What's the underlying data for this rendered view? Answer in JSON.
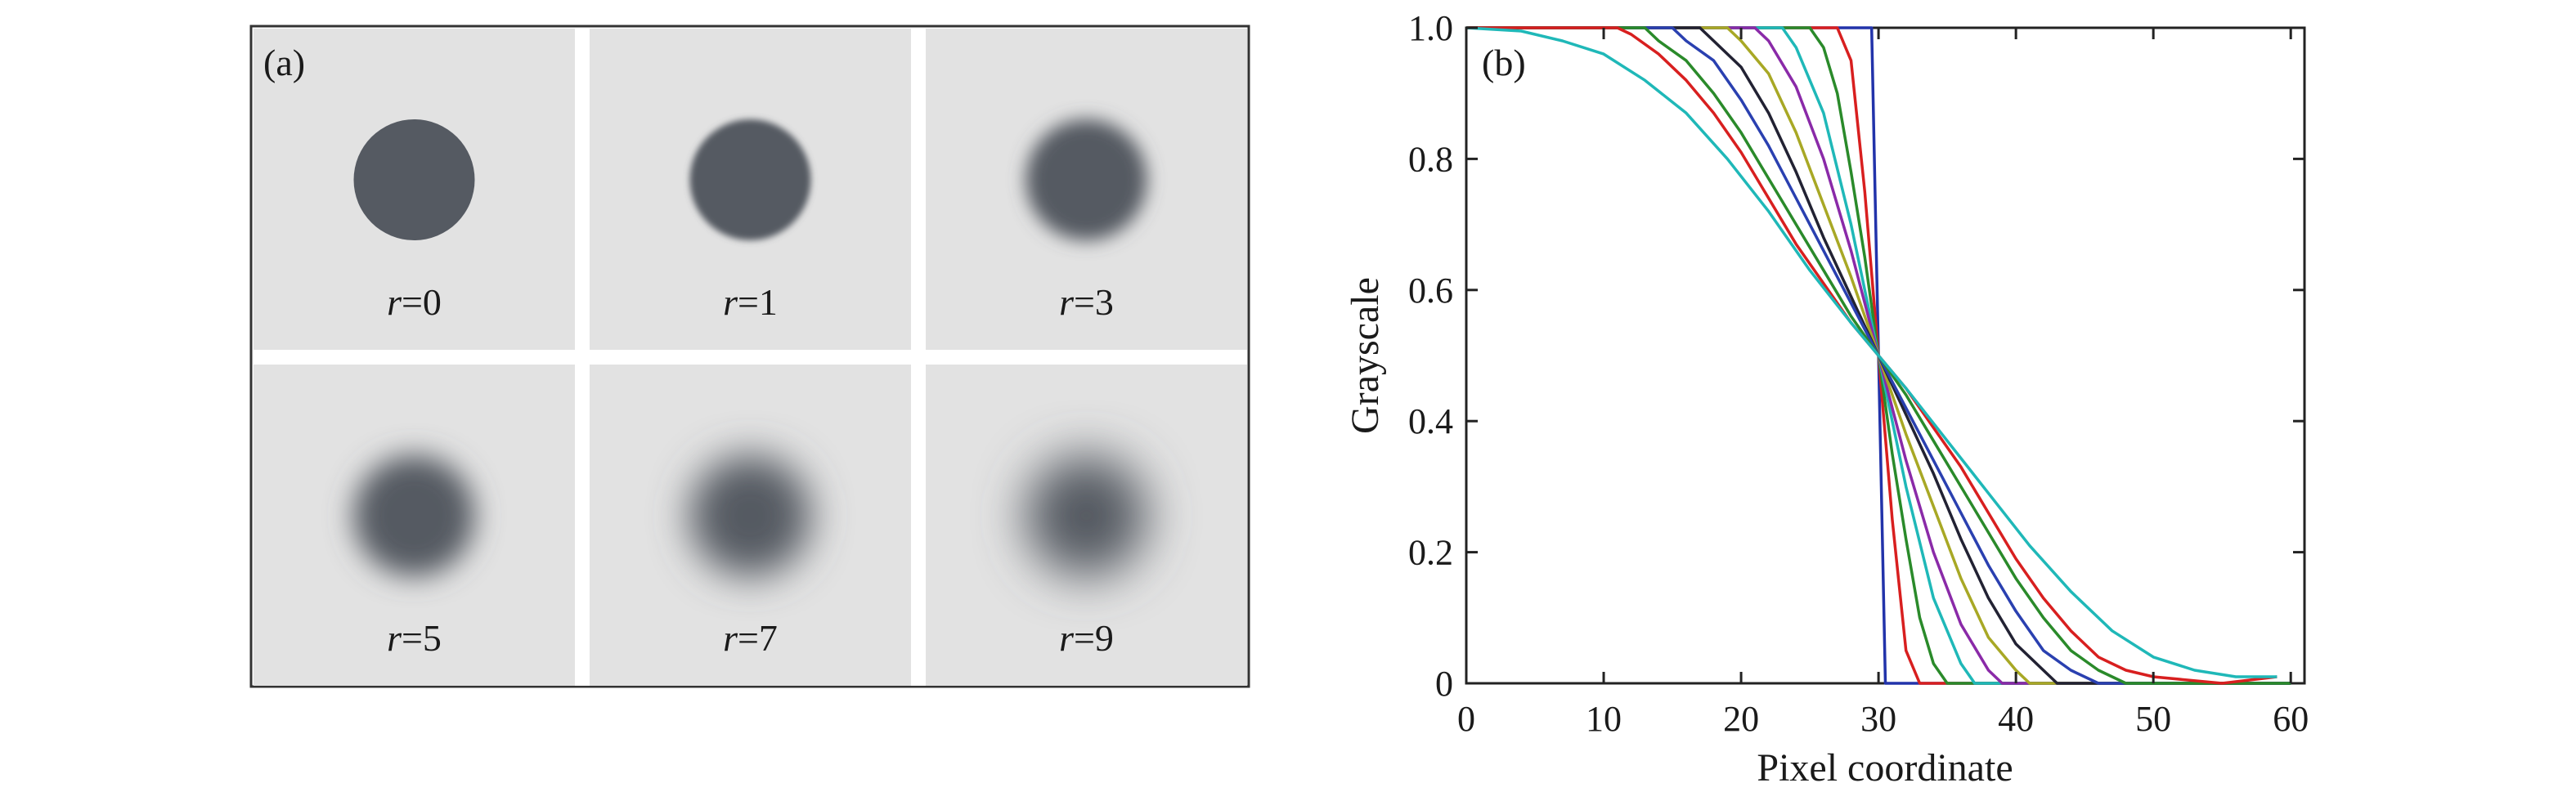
{
  "panel_a": {
    "label": "(a)",
    "tiles": [
      {
        "label_var": "r",
        "label_eq": "=0",
        "blur_radius": 0
      },
      {
        "label_var": "r",
        "label_eq": "=1",
        "blur_radius": 1
      },
      {
        "label_var": "r",
        "label_eq": "=3",
        "blur_radius": 3
      },
      {
        "label_var": "r",
        "label_eq": "=5",
        "blur_radius": 5
      },
      {
        "label_var": "r",
        "label_eq": "=7",
        "blur_radius": 7
      },
      {
        "label_var": "r",
        "label_eq": "=9",
        "blur_radius": 9
      }
    ],
    "colors": {
      "background": "#e2e2e2",
      "disk": "#555a62",
      "separator": "#ffffff"
    }
  },
  "chart_data": {
    "type": "line",
    "panel_label": "(b)",
    "title": "",
    "xlabel": "Pixel coordinate",
    "ylabel": "Grayscale",
    "xlim": [
      0,
      61
    ],
    "ylim": [
      0,
      1.0
    ],
    "xticks": [
      0,
      10,
      20,
      30,
      40,
      50,
      60
    ],
    "xtick_labels": [
      "0",
      "10",
      "20",
      "30",
      "40",
      "50",
      "60"
    ],
    "yticks": [
      0,
      0.2,
      0.4,
      0.6,
      0.8,
      1.0
    ],
    "ytick_labels": [
      "0",
      "0.2",
      "0.4",
      "0.6",
      "0.8",
      "1.0"
    ],
    "grid": false,
    "legend": "none",
    "center_x": 30,
    "series": [
      {
        "color": "#2233aa",
        "values": [
          [
            0,
            1.0
          ],
          [
            29.5,
            1.0
          ],
          [
            29.8,
            0.7
          ],
          [
            30.0,
            0.5
          ],
          [
            30.2,
            0.3
          ],
          [
            30.5,
            0.0
          ],
          [
            60,
            0.0
          ]
        ]
      },
      {
        "color": "#d81f1f",
        "values": [
          [
            0,
            1.0
          ],
          [
            27,
            1.0
          ],
          [
            28,
            0.95
          ],
          [
            29,
            0.75
          ],
          [
            30,
            0.5
          ],
          [
            31,
            0.25
          ],
          [
            32,
            0.05
          ],
          [
            33,
            0.0
          ],
          [
            60,
            0.0
          ]
        ]
      },
      {
        "color": "#2a8a2a",
        "values": [
          [
            0,
            1.0
          ],
          [
            25,
            1.0
          ],
          [
            26,
            0.97
          ],
          [
            27,
            0.9
          ],
          [
            28,
            0.78
          ],
          [
            29,
            0.65
          ],
          [
            30,
            0.5
          ],
          [
            31,
            0.35
          ],
          [
            32,
            0.22
          ],
          [
            33,
            0.1
          ],
          [
            34,
            0.03
          ],
          [
            35,
            0.0
          ],
          [
            60,
            0.0
          ]
        ]
      },
      {
        "color": "#1fb8b8",
        "values": [
          [
            0,
            1.0
          ],
          [
            23,
            1.0
          ],
          [
            24,
            0.97
          ],
          [
            26,
            0.87
          ],
          [
            28,
            0.7
          ],
          [
            30,
            0.5
          ],
          [
            32,
            0.3
          ],
          [
            34,
            0.13
          ],
          [
            36,
            0.03
          ],
          [
            37,
            0.0
          ],
          [
            60,
            0.0
          ]
        ]
      },
      {
        "color": "#8a2aa8",
        "values": [
          [
            0,
            1.0
          ],
          [
            21,
            1.0
          ],
          [
            22,
            0.98
          ],
          [
            24,
            0.91
          ],
          [
            26,
            0.8
          ],
          [
            28,
            0.66
          ],
          [
            30,
            0.5
          ],
          [
            32,
            0.34
          ],
          [
            34,
            0.2
          ],
          [
            36,
            0.09
          ],
          [
            38,
            0.02
          ],
          [
            39,
            0.0
          ],
          [
            60,
            0.0
          ]
        ]
      },
      {
        "color": "#a8a825",
        "values": [
          [
            0,
            1.0
          ],
          [
            19,
            1.0
          ],
          [
            20,
            0.98
          ],
          [
            22,
            0.93
          ],
          [
            24,
            0.84
          ],
          [
            26,
            0.73
          ],
          [
            28,
            0.62
          ],
          [
            30,
            0.5
          ],
          [
            32,
            0.38
          ],
          [
            34,
            0.27
          ],
          [
            36,
            0.16
          ],
          [
            38,
            0.07
          ],
          [
            40,
            0.02
          ],
          [
            41,
            0.0
          ],
          [
            60,
            0.0
          ]
        ]
      },
      {
        "color": "#222233",
        "values": [
          [
            0,
            1.0
          ],
          [
            17,
            1.0
          ],
          [
            18,
            0.98
          ],
          [
            20,
            0.94
          ],
          [
            22,
            0.87
          ],
          [
            24,
            0.78
          ],
          [
            26,
            0.68
          ],
          [
            28,
            0.59
          ],
          [
            30,
            0.5
          ],
          [
            32,
            0.41
          ],
          [
            34,
            0.32
          ],
          [
            36,
            0.22
          ],
          [
            38,
            0.13
          ],
          [
            40,
            0.06
          ],
          [
            42,
            0.02
          ],
          [
            43,
            0.0
          ],
          [
            60,
            0.0
          ]
        ]
      },
      {
        "color": "#2a40b0",
        "values": [
          [
            0,
            1.0
          ],
          [
            15,
            1.0
          ],
          [
            16,
            0.98
          ],
          [
            18,
            0.95
          ],
          [
            20,
            0.89
          ],
          [
            22,
            0.82
          ],
          [
            24,
            0.74
          ],
          [
            26,
            0.66
          ],
          [
            28,
            0.58
          ],
          [
            30,
            0.5
          ],
          [
            32,
            0.42
          ],
          [
            34,
            0.34
          ],
          [
            36,
            0.26
          ],
          [
            38,
            0.18
          ],
          [
            40,
            0.11
          ],
          [
            42,
            0.05
          ],
          [
            44,
            0.02
          ],
          [
            46,
            0.0
          ],
          [
            60,
            0.0
          ]
        ]
      },
      {
        "color": "#2a8a2a",
        "values": [
          [
            0,
            1.0
          ],
          [
            13,
            1.0
          ],
          [
            14,
            0.98
          ],
          [
            16,
            0.95
          ],
          [
            18,
            0.9
          ],
          [
            20,
            0.84
          ],
          [
            22,
            0.77
          ],
          [
            24,
            0.7
          ],
          [
            26,
            0.63
          ],
          [
            28,
            0.56
          ],
          [
            30,
            0.5
          ],
          [
            32,
            0.44
          ],
          [
            34,
            0.37
          ],
          [
            36,
            0.3
          ],
          [
            38,
            0.23
          ],
          [
            40,
            0.16
          ],
          [
            42,
            0.1
          ],
          [
            44,
            0.05
          ],
          [
            46,
            0.02
          ],
          [
            48,
            0.0
          ],
          [
            60,
            0.0
          ]
        ]
      },
      {
        "color": "#d81f1f",
        "values": [
          [
            0,
            1.0
          ],
          [
            11,
            1.0
          ],
          [
            12,
            0.99
          ],
          [
            14,
            0.96
          ],
          [
            16,
            0.92
          ],
          [
            18,
            0.87
          ],
          [
            20,
            0.81
          ],
          [
            22,
            0.74
          ],
          [
            24,
            0.67
          ],
          [
            26,
            0.61
          ],
          [
            28,
            0.55
          ],
          [
            30,
            0.5
          ],
          [
            32,
            0.45
          ],
          [
            34,
            0.39
          ],
          [
            36,
            0.33
          ],
          [
            38,
            0.26
          ],
          [
            40,
            0.19
          ],
          [
            42,
            0.13
          ],
          [
            44,
            0.08
          ],
          [
            46,
            0.04
          ],
          [
            48,
            0.02
          ],
          [
            50,
            0.01
          ],
          [
            55,
            0.0
          ],
          [
            59,
            0.01
          ]
        ]
      },
      {
        "color": "#1fb8b8",
        "values": [
          [
            0,
            1.0
          ],
          [
            4,
            0.995
          ],
          [
            7,
            0.98
          ],
          [
            10,
            0.96
          ],
          [
            13,
            0.92
          ],
          [
            16,
            0.87
          ],
          [
            19,
            0.8
          ],
          [
            22,
            0.72
          ],
          [
            25,
            0.63
          ],
          [
            28,
            0.55
          ],
          [
            30,
            0.5
          ],
          [
            32,
            0.45
          ],
          [
            35,
            0.37
          ],
          [
            38,
            0.29
          ],
          [
            41,
            0.21
          ],
          [
            44,
            0.14
          ],
          [
            47,
            0.08
          ],
          [
            50,
            0.04
          ],
          [
            53,
            0.02
          ],
          [
            56,
            0.01
          ],
          [
            59,
            0.01
          ]
        ]
      }
    ]
  }
}
